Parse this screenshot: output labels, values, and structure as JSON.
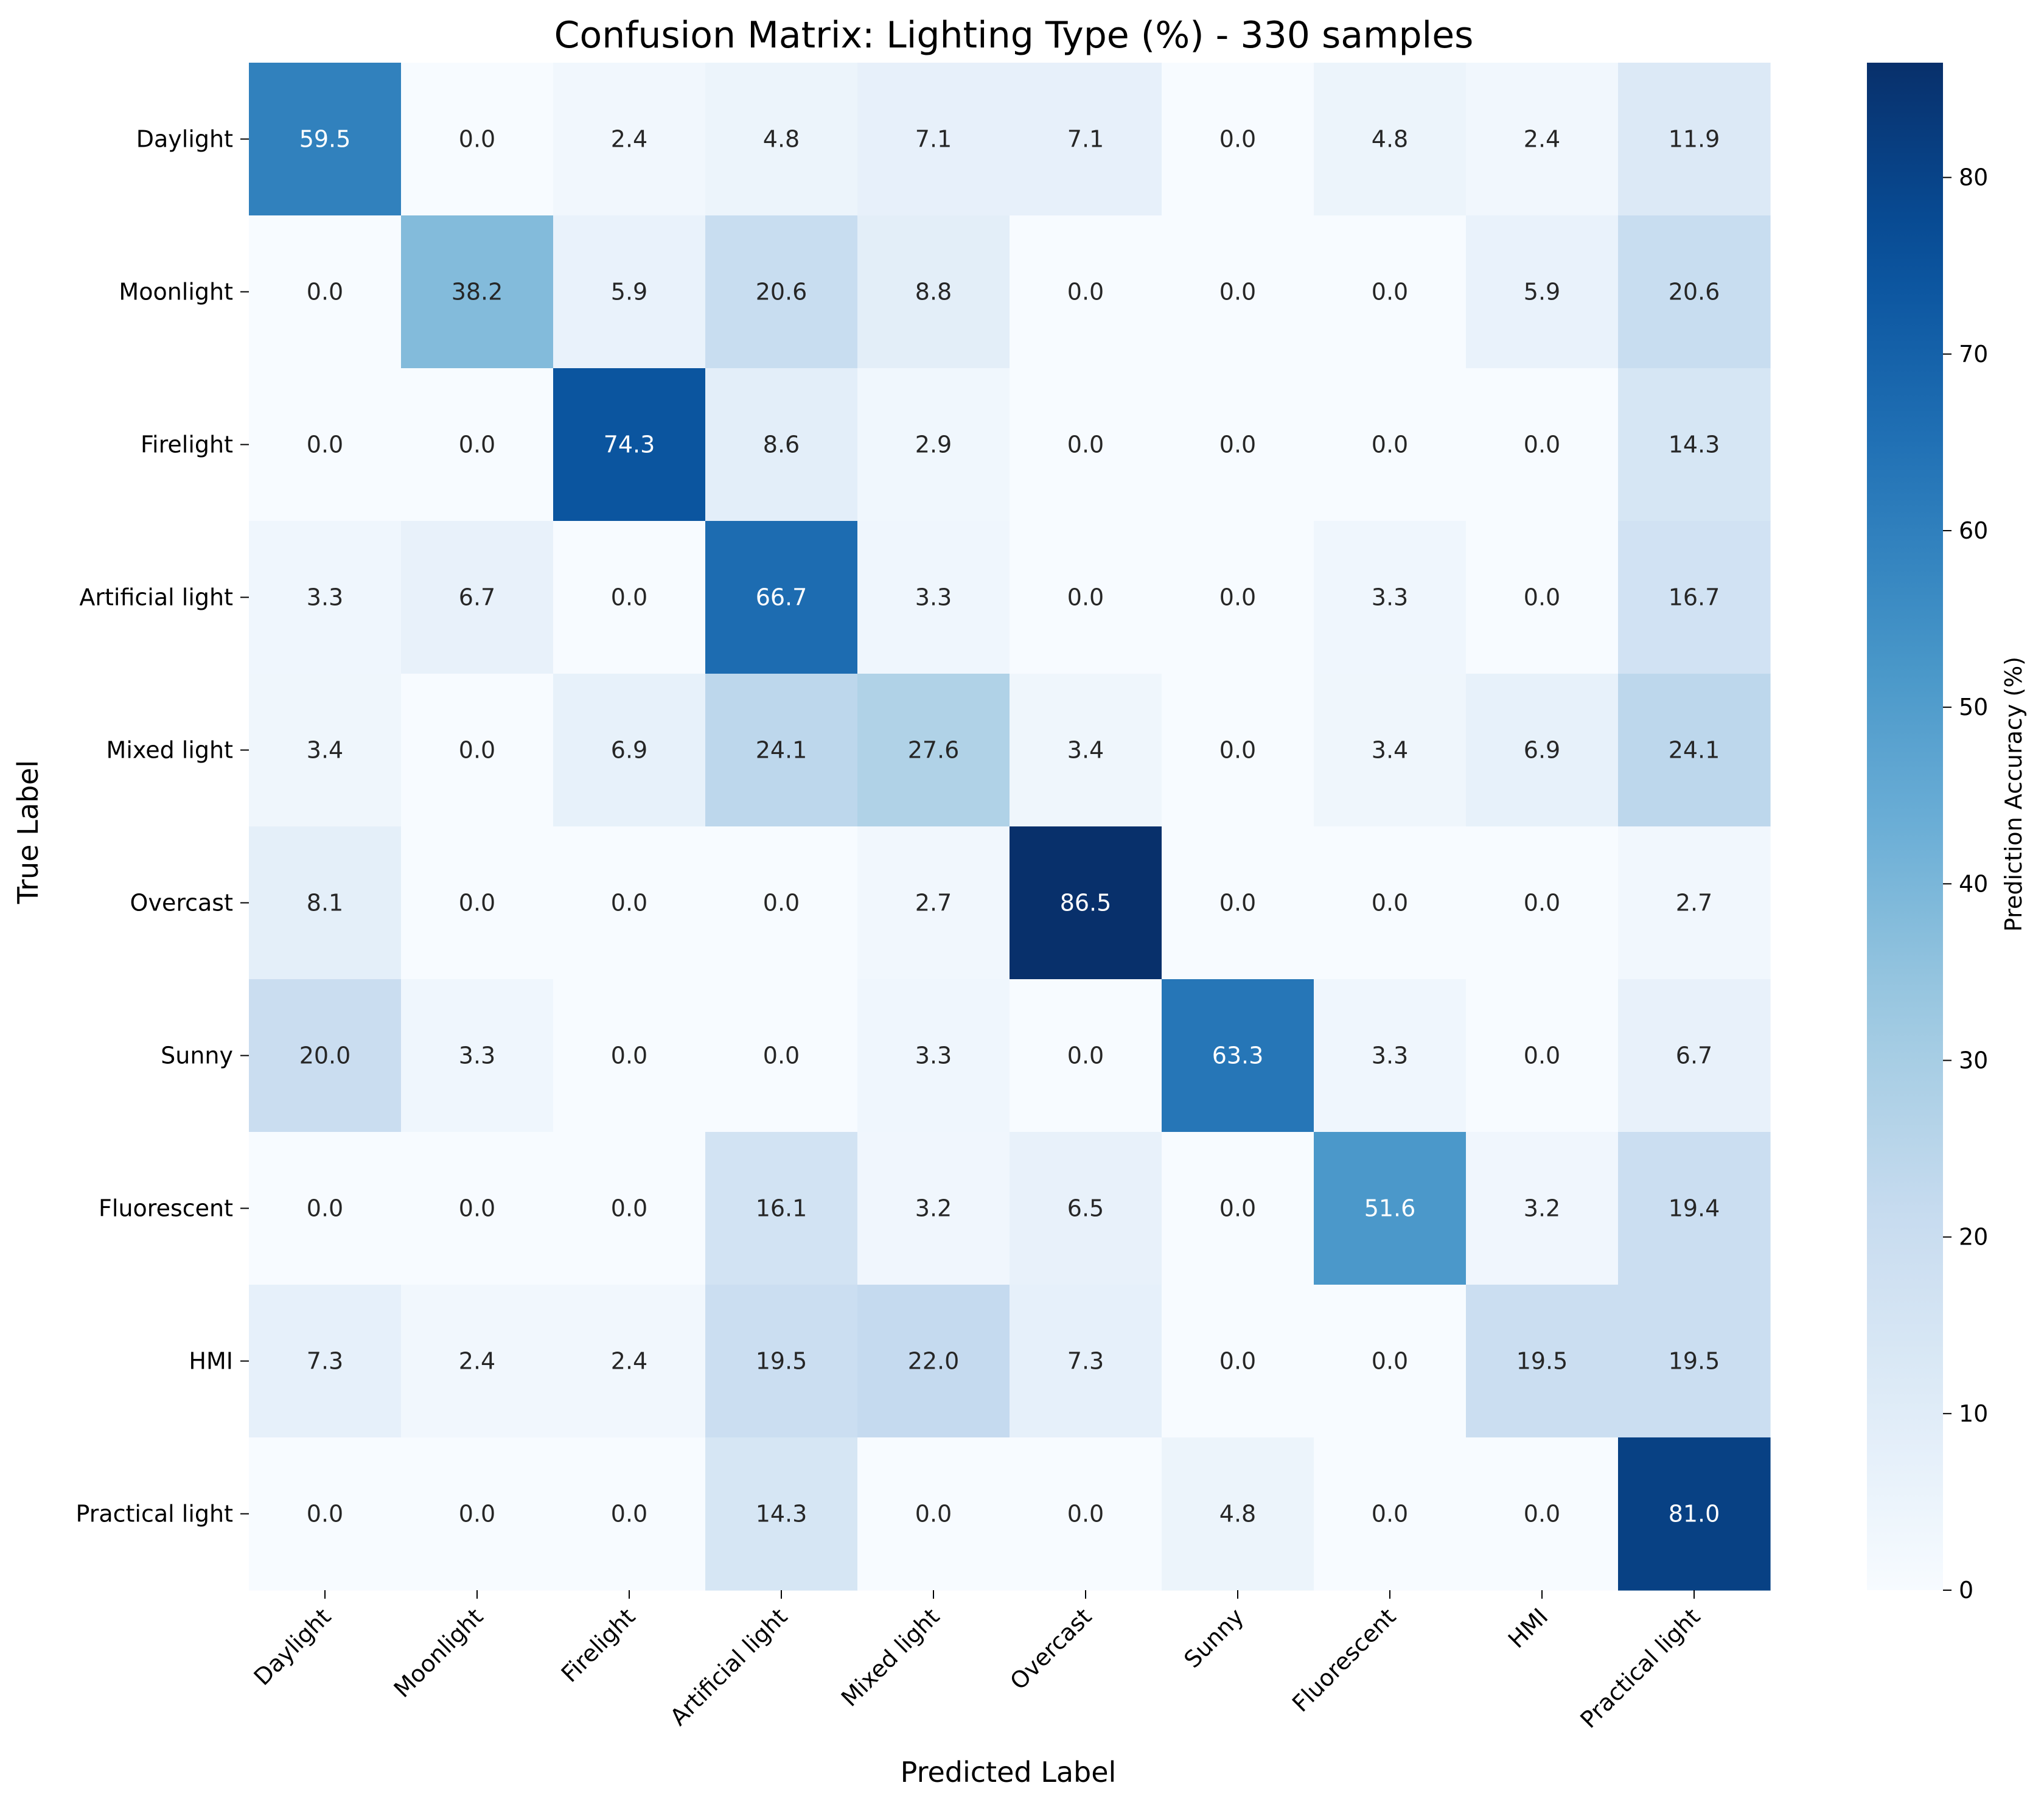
{
  "chart_data": {
    "type": "heatmap",
    "title": "Confusion Matrix: Lighting Type (%) - 330 samples",
    "xlabel": "Predicted Label",
    "ylabel": "True Label",
    "colorbar_label": "Prediction Accuracy (%)",
    "colormap": "Blues",
    "color_range": [
      0,
      86.5
    ],
    "colorbar_ticks": [
      "0",
      "10",
      "20",
      "30",
      "40",
      "50",
      "60",
      "70",
      "80"
    ],
    "row_labels": [
      "Daylight",
      "Moonlight",
      "Firelight",
      "Artificial light",
      "Mixed light",
      "Overcast",
      "Sunny",
      "Fluorescent",
      "HMI",
      "Practical light"
    ],
    "col_labels": [
      "Daylight",
      "Moonlight",
      "Firelight",
      "Artificial light",
      "Mixed light",
      "Overcast",
      "Sunny",
      "Fluorescent",
      "HMI",
      "Practical light"
    ],
    "values": [
      [
        59.5,
        0.0,
        2.4,
        4.8,
        7.1,
        7.1,
        0.0,
        4.8,
        2.4,
        11.9
      ],
      [
        0.0,
        38.2,
        5.9,
        20.6,
        8.8,
        0.0,
        0.0,
        0.0,
        5.9,
        20.6
      ],
      [
        0.0,
        0.0,
        74.3,
        8.6,
        2.9,
        0.0,
        0.0,
        0.0,
        0.0,
        14.3
      ],
      [
        3.3,
        6.7,
        0.0,
        66.7,
        3.3,
        0.0,
        0.0,
        3.3,
        0.0,
        16.7
      ],
      [
        3.4,
        0.0,
        6.9,
        24.1,
        27.6,
        3.4,
        0.0,
        3.4,
        6.9,
        24.1
      ],
      [
        8.1,
        0.0,
        0.0,
        0.0,
        2.7,
        86.5,
        0.0,
        0.0,
        0.0,
        2.7
      ],
      [
        20.0,
        3.3,
        0.0,
        0.0,
        3.3,
        0.0,
        63.3,
        3.3,
        0.0,
        6.7
      ],
      [
        0.0,
        0.0,
        0.0,
        16.1,
        3.2,
        6.5,
        0.0,
        51.6,
        3.2,
        19.4
      ],
      [
        7.3,
        2.4,
        2.4,
        19.5,
        22.0,
        7.3,
        0.0,
        0.0,
        19.5,
        19.5
      ],
      [
        0.0,
        0.0,
        0.0,
        14.3,
        0.0,
        0.0,
        4.8,
        0.0,
        0.0,
        81.0
      ]
    ]
  }
}
